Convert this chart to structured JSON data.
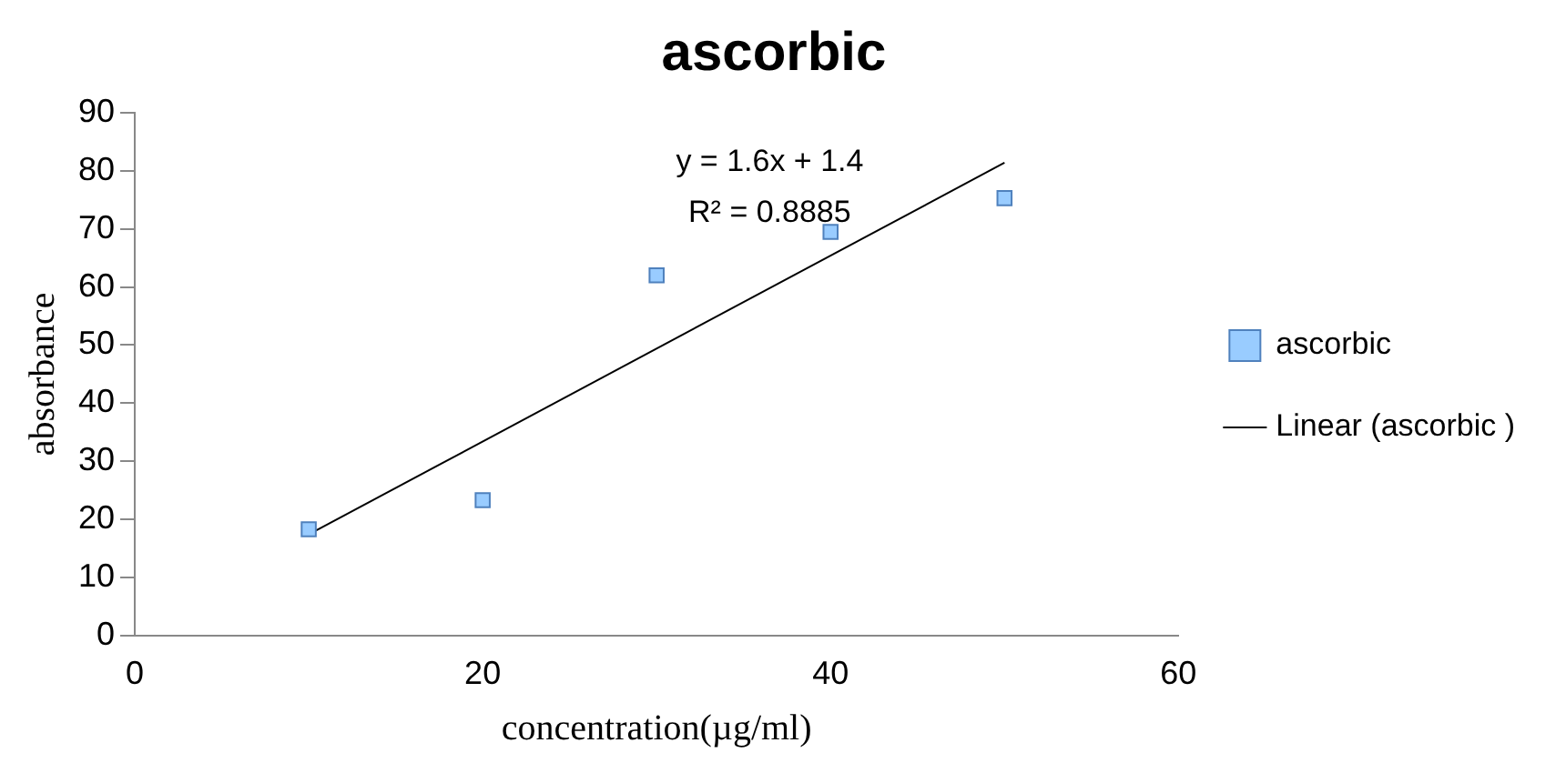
{
  "chart_data": {
    "type": "scatter",
    "title": "ascorbic",
    "xlabel": "concentration(µg/ml)",
    "ylabel": "absorbance",
    "series": [
      {
        "name": "ascorbic",
        "color": "#99ccff",
        "x": [
          10,
          20,
          30,
          40,
          50
        ],
        "values": [
          18.3,
          23.3,
          62,
          69.5,
          75.3
        ],
        "marker": "square"
      },
      {
        "name": "Linear (ascorbic )",
        "type": "line",
        "color": "#000000",
        "x": [
          10,
          50
        ],
        "values": [
          17.4,
          81.4
        ],
        "marker": "none"
      }
    ],
    "xlim": [
      0,
      60
    ],
    "xticks": [
      0,
      20,
      40,
      60
    ],
    "ylim": [
      0,
      90
    ],
    "yticks": [
      0,
      10,
      20,
      30,
      40,
      50,
      60,
      70,
      80,
      90
    ],
    "grid": false,
    "legend": "right",
    "annotations": [
      "y = 1.6x + 1.4",
      "R² = 0.8885"
    ]
  }
}
